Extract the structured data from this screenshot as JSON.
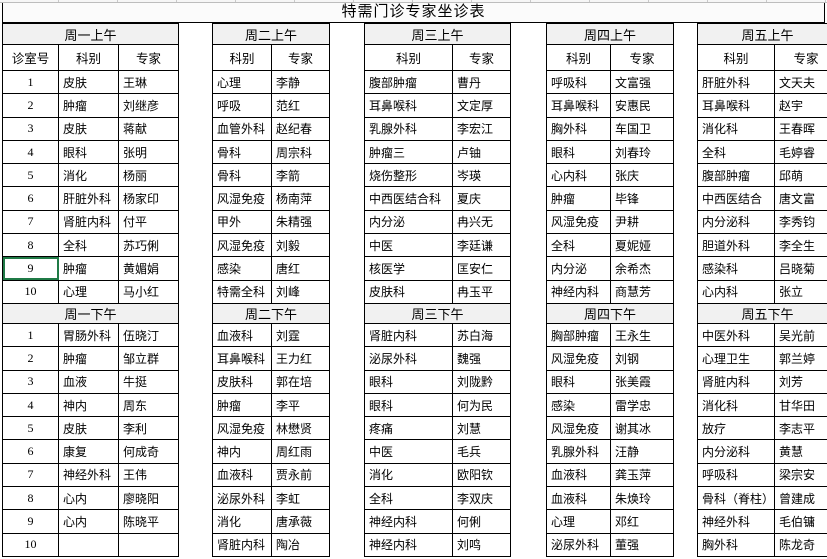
{
  "title": "特需门诊专家坐诊表",
  "room_header": "诊室号",
  "col_headers": {
    "dept": "科别",
    "expert": "专家"
  },
  "room_numbers": [
    "1",
    "2",
    "3",
    "4",
    "5",
    "6",
    "7",
    "8",
    "9",
    "10"
  ],
  "selected_cell": {
    "group": 0,
    "section": "morning",
    "row_index": 8
  },
  "colors": {
    "grid": "#000000",
    "band_bg": "#f1f1f1",
    "selection_green": "#1f7a46"
  },
  "groups": [
    {
      "morning_label": "周一上午",
      "afternoon_label": "周一下午",
      "morning": [
        {
          "dept": "皮肤",
          "expert": "王琳"
        },
        {
          "dept": "肿瘤",
          "expert": "刘继彦"
        },
        {
          "dept": "皮肤",
          "expert": "蒋献"
        },
        {
          "dept": "眼科",
          "expert": "张明"
        },
        {
          "dept": "消化",
          "expert": "杨丽"
        },
        {
          "dept": "肝脏外科",
          "expert": "杨家印"
        },
        {
          "dept": "肾脏内科",
          "expert": "付平"
        },
        {
          "dept": "全科",
          "expert": "苏巧俐"
        },
        {
          "dept": "肿瘤",
          "expert": "黄媚娟"
        },
        {
          "dept": "心理",
          "expert": "马小红"
        }
      ],
      "afternoon": [
        {
          "dept": "胃肠外科",
          "expert": "伍晓汀"
        },
        {
          "dept": "肿瘤",
          "expert": "邹立群"
        },
        {
          "dept": "血液",
          "expert": "牛挺"
        },
        {
          "dept": "神内",
          "expert": "周东"
        },
        {
          "dept": "皮肤",
          "expert": "李利"
        },
        {
          "dept": "康复",
          "expert": "何成奇"
        },
        {
          "dept": "神经外科",
          "expert": "王伟"
        },
        {
          "dept": "心内",
          "expert": "廖晓阳"
        },
        {
          "dept": "心内",
          "expert": "陈晓平"
        },
        {
          "dept": "",
          "expert": ""
        }
      ]
    },
    {
      "morning_label": "周二上午",
      "afternoon_label": "周二下午",
      "morning": [
        {
          "dept": "心理",
          "expert": "李静"
        },
        {
          "dept": "呼吸",
          "expert": "范红"
        },
        {
          "dept": "血管外科",
          "expert": "赵纪春"
        },
        {
          "dept": "骨科",
          "expert": "周宗科"
        },
        {
          "dept": "骨科",
          "expert": "李箭"
        },
        {
          "dept": "风湿免疫",
          "expert": "杨南萍"
        },
        {
          "dept": "甲外",
          "expert": "朱精强"
        },
        {
          "dept": "风湿免疫",
          "expert": "刘毅"
        },
        {
          "dept": "感染",
          "expert": "唐红"
        },
        {
          "dept": "特需全科",
          "expert": "刘峰"
        }
      ],
      "afternoon": [
        {
          "dept": "血液科",
          "expert": "刘霆"
        },
        {
          "dept": "耳鼻喉科",
          "expert": "王力红"
        },
        {
          "dept": "皮肤科",
          "expert": "郭在培"
        },
        {
          "dept": "肿瘤",
          "expert": "李平"
        },
        {
          "dept": "风湿免疫",
          "expert": "林懋贤"
        },
        {
          "dept": "神内",
          "expert": "周红雨"
        },
        {
          "dept": "血液科",
          "expert": "贾永前"
        },
        {
          "dept": "泌尿外科",
          "expert": "李虹"
        },
        {
          "dept": "消化",
          "expert": "唐承薇"
        },
        {
          "dept": "肾脏内科",
          "expert": "陶冶"
        }
      ]
    },
    {
      "morning_label": "周三上午",
      "afternoon_label": "周三下午",
      "morning": [
        {
          "dept": "腹部肿瘤",
          "expert": "曹丹"
        },
        {
          "dept": "耳鼻喉科",
          "expert": "文定厚"
        },
        {
          "dept": "乳腺外科",
          "expert": "李宏江"
        },
        {
          "dept": "肿瘤三",
          "expert": "卢铀"
        },
        {
          "dept": "烧伤整形",
          "expert": "岑瑛"
        },
        {
          "dept": "中西医结合科",
          "expert": "夏庆"
        },
        {
          "dept": "内分泌",
          "expert": "冉兴无"
        },
        {
          "dept": "中医",
          "expert": "李廷谦"
        },
        {
          "dept": "核医学",
          "expert": "匡安仁"
        },
        {
          "dept": "皮肤科",
          "expert": "冉玉平"
        }
      ],
      "afternoon": [
        {
          "dept": "肾脏内科",
          "expert": "苏白海"
        },
        {
          "dept": "泌尿外科",
          "expert": "魏强"
        },
        {
          "dept": "眼科",
          "expert": "刘陇黔"
        },
        {
          "dept": "眼科",
          "expert": "何为民"
        },
        {
          "dept": "疼痛",
          "expert": "刘慧"
        },
        {
          "dept": "中医",
          "expert": "毛兵"
        },
        {
          "dept": "消化",
          "expert": "欧阳钦"
        },
        {
          "dept": "全科",
          "expert": "李双庆"
        },
        {
          "dept": "神经内科",
          "expert": "何俐"
        },
        {
          "dept": "神经内科",
          "expert": "刘鸣"
        }
      ]
    },
    {
      "morning_label": "周四上午",
      "afternoon_label": "周四下午",
      "morning": [
        {
          "dept": "呼吸科",
          "expert": "文富强"
        },
        {
          "dept": "耳鼻喉科",
          "expert": "安惠民"
        },
        {
          "dept": "胸外科",
          "expert": "车国卫"
        },
        {
          "dept": "眼科",
          "expert": "刘春玲"
        },
        {
          "dept": "心内科",
          "expert": "张庆"
        },
        {
          "dept": "肿瘤",
          "expert": "毕锋"
        },
        {
          "dept": "风湿免疫",
          "expert": "尹耕"
        },
        {
          "dept": "全科",
          "expert": "夏妮娅"
        },
        {
          "dept": "内分泌",
          "expert": "余希杰"
        },
        {
          "dept": "神经内科",
          "expert": "商慧芳"
        }
      ],
      "afternoon": [
        {
          "dept": "胸部肿瘤",
          "expert": "王永生"
        },
        {
          "dept": "风湿免疫",
          "expert": "刘钢"
        },
        {
          "dept": "眼科",
          "expert": "张美霞"
        },
        {
          "dept": "感染",
          "expert": "雷学忠"
        },
        {
          "dept": "风湿免疫",
          "expert": "谢其冰"
        },
        {
          "dept": "乳腺外科",
          "expert": "汪静"
        },
        {
          "dept": "血液科",
          "expert": "龚玉萍"
        },
        {
          "dept": "血液科",
          "expert": "朱焕玲"
        },
        {
          "dept": "心理",
          "expert": "邓红"
        },
        {
          "dept": "泌尿外科",
          "expert": "董强"
        }
      ]
    },
    {
      "morning_label": "周五上午",
      "afternoon_label": "周五下午",
      "morning": [
        {
          "dept": "肝脏外科",
          "expert": "文天夫"
        },
        {
          "dept": "耳鼻喉科",
          "expert": "赵宇"
        },
        {
          "dept": "消化科",
          "expert": "王春晖"
        },
        {
          "dept": "全科",
          "expert": "毛婷睿"
        },
        {
          "dept": "腹部肿瘤",
          "expert": "邱萌"
        },
        {
          "dept": "中西医结合",
          "expert": "唐文富"
        },
        {
          "dept": "内分泌科",
          "expert": "李秀钧"
        },
        {
          "dept": "胆道外科",
          "expert": "李全生"
        },
        {
          "dept": "感染科",
          "expert": "吕晓菊"
        },
        {
          "dept": "心内科",
          "expert": "张立"
        }
      ],
      "afternoon": [
        {
          "dept": "中医外科",
          "expert": "吴光前"
        },
        {
          "dept": "心理卫生",
          "expert": "郭兰婷"
        },
        {
          "dept": "肾脏内科",
          "expert": "刘芳"
        },
        {
          "dept": "消化科",
          "expert": "甘华田"
        },
        {
          "dept": "放疗",
          "expert": "李志平"
        },
        {
          "dept": "内分泌科",
          "expert": "黄慧"
        },
        {
          "dept": "呼吸科",
          "expert": "梁宗安"
        },
        {
          "dept": "骨科（脊柱）",
          "expert": "曾建成"
        },
        {
          "dept": "神经外科",
          "expert": "毛伯镛"
        },
        {
          "dept": "胸外科",
          "expert": "陈龙奇"
        }
      ]
    }
  ]
}
